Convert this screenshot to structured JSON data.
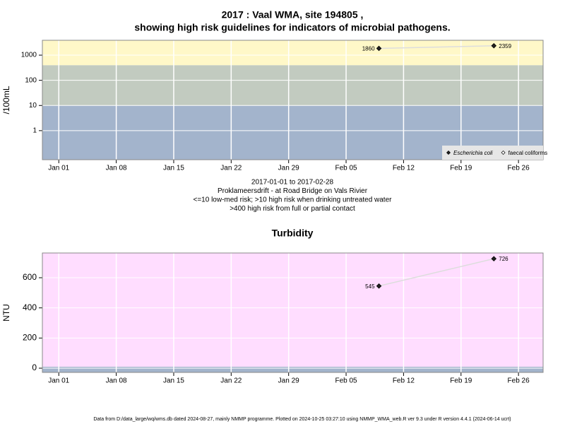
{
  "chart_data": [
    {
      "type": "line",
      "title": [
        "2017 : Vaal WMA, site 194805 ,",
        "showing high risk guidelines for indicators of microbial pathogens."
      ],
      "ylabel": "/100mL",
      "xlabel": [
        "2017-01-01 to 2017-02-28",
        "Proklameersdrift - at Road Bridge on Vals Rivier",
        "<=10 low-med risk; >10 high risk when drinking untreated water",
        ">400 high risk from full or partial contact"
      ],
      "log": true,
      "x": [
        "2017-02-09",
        "2017-02-23"
      ],
      "series": [
        {
          "name": "Escherichia coli",
          "color": "#222222",
          "marker": "filled",
          "values": [
            1860,
            2359
          ]
        },
        {
          "name": "faecal coliforms",
          "color": "#222222",
          "marker": "open",
          "values": [
            null,
            null
          ]
        }
      ],
      "line_color": "#dddddd",
      "bands": [
        {
          "from": null,
          "to": 10,
          "color": "#a3b4cc"
        },
        {
          "from": 10,
          "to": 400,
          "color": "#c2cbc0"
        },
        {
          "from": 400,
          "to": null,
          "color": "#fff8c8"
        }
      ],
      "xlim": [
        "2016-12-30",
        "2017-03-01"
      ],
      "ylim": [
        0.07,
        3900
      ],
      "yticks": [
        1,
        10,
        100,
        1000
      ],
      "xticks": [
        {
          "value": "2017-01-01",
          "label": "Jan 01"
        },
        {
          "value": "2017-01-08",
          "label": "Jan 08"
        },
        {
          "value": "2017-01-15",
          "label": "Jan 15"
        },
        {
          "value": "2017-01-22",
          "label": "Jan 22"
        },
        {
          "value": "2017-01-29",
          "label": "Jan 29"
        },
        {
          "value": "2017-02-05",
          "label": "Feb 05"
        },
        {
          "value": "2017-02-12",
          "label": "Feb 12"
        },
        {
          "value": "2017-02-19",
          "label": "Feb 19"
        },
        {
          "value": "2017-02-26",
          "label": "Feb 26"
        }
      ],
      "grid": true,
      "legend": "bottom-right"
    },
    {
      "type": "line",
      "title": [
        "Turbidity"
      ],
      "ylabel": "NTU",
      "log": false,
      "x": [
        "2017-02-09",
        "2017-02-23"
      ],
      "series": [
        {
          "name": "Turbidity",
          "color": "#222222",
          "marker": "filled",
          "values": [
            545,
            726
          ]
        }
      ],
      "line_color": "#dddddd",
      "bands": [
        {
          "from": null,
          "to": 10,
          "color": "#a3b4cc"
        },
        {
          "from": 10,
          "to": null,
          "color": "#ffddff"
        }
      ],
      "xlim": [
        "2016-12-30",
        "2017-03-01"
      ],
      "ylim": [
        -28,
        764
      ],
      "yticks": [
        0,
        200,
        400,
        600
      ],
      "xticks": [
        {
          "value": "2017-01-01",
          "label": "Jan 01"
        },
        {
          "value": "2017-01-08",
          "label": "Jan 08"
        },
        {
          "value": "2017-01-15",
          "label": "Jan 15"
        },
        {
          "value": "2017-01-22",
          "label": "Jan 22"
        },
        {
          "value": "2017-01-29",
          "label": "Jan 29"
        },
        {
          "value": "2017-02-05",
          "label": "Feb 05"
        },
        {
          "value": "2017-02-12",
          "label": "Feb 12"
        },
        {
          "value": "2017-02-19",
          "label": "Feb 19"
        },
        {
          "value": "2017-02-26",
          "label": "Feb 26"
        }
      ],
      "grid": true
    }
  ],
  "footer": "Data from D:/data_large/wq/wms.db dated 2024-08-27, mainly NMMP programme. Plotted on 2024-10-25 03:27:10 using NMMP_WMA_web.R ver 9.3 under R version 4.4.1 (2024-06-14 ucrt)"
}
